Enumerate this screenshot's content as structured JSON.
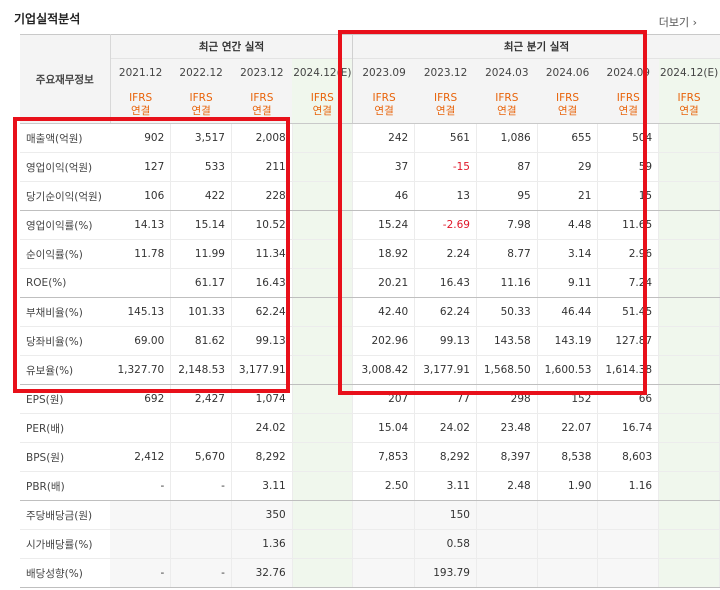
{
  "header": {
    "title": "기업실적분석",
    "more": "더보기"
  },
  "columns": {
    "row_header": "주요재무정보",
    "annual_group": "최근 연간 실적",
    "quarter_group": "최근 분기 실적",
    "annual": [
      "2021.12",
      "2022.12",
      "2023.12",
      "2024.12(E)"
    ],
    "quarter": [
      "2023.09",
      "2023.12",
      "2024.03",
      "2024.06",
      "2024.09",
      "2024.12(E)"
    ],
    "ifrs_top": "IFRS",
    "ifrs_bottom": "연결"
  },
  "rows": [
    {
      "label": "매출액(억원)",
      "annual": [
        "902",
        "3,517",
        "2,008",
        ""
      ],
      "quarter": [
        "242",
        "561",
        "1,086",
        "655",
        "504",
        ""
      ]
    },
    {
      "label": "영업이익(억원)",
      "annual": [
        "127",
        "533",
        "211",
        ""
      ],
      "quarter": [
        "37",
        "-15",
        "87",
        "29",
        "59",
        ""
      ]
    },
    {
      "label": "당기순이익(억원)",
      "annual": [
        "106",
        "422",
        "228",
        ""
      ],
      "quarter": [
        "46",
        "13",
        "95",
        "21",
        "15",
        ""
      ]
    },
    {
      "label": "영업이익률(%)",
      "annual": [
        "14.13",
        "15.14",
        "10.52",
        ""
      ],
      "quarter": [
        "15.24",
        "-2.69",
        "7.98",
        "4.48",
        "11.65",
        ""
      ]
    },
    {
      "label": "순이익률(%)",
      "annual": [
        "11.78",
        "11.99",
        "11.34",
        ""
      ],
      "quarter": [
        "18.92",
        "2.24",
        "8.77",
        "3.14",
        "2.96",
        ""
      ]
    },
    {
      "label": "ROE(%)",
      "annual": [
        "",
        "61.17",
        "16.43",
        ""
      ],
      "quarter": [
        "20.21",
        "16.43",
        "11.16",
        "9.11",
        "7.24",
        ""
      ]
    },
    {
      "label": "부채비율(%)",
      "annual": [
        "145.13",
        "101.33",
        "62.24",
        ""
      ],
      "quarter": [
        "42.40",
        "62.24",
        "50.33",
        "46.44",
        "51.45",
        ""
      ]
    },
    {
      "label": "당좌비율(%)",
      "annual": [
        "69.00",
        "81.62",
        "99.13",
        ""
      ],
      "quarter": [
        "202.96",
        "99.13",
        "143.58",
        "143.19",
        "127.87",
        ""
      ]
    },
    {
      "label": "유보율(%)",
      "annual": [
        "1,327.70",
        "2,148.53",
        "3,177.91",
        ""
      ],
      "quarter": [
        "3,008.42",
        "3,177.91",
        "1,568.50",
        "1,600.53",
        "1,614.38",
        ""
      ]
    },
    {
      "label": "EPS(원)",
      "annual": [
        "692",
        "2,427",
        "1,074",
        ""
      ],
      "quarter": [
        "207",
        "77",
        "298",
        "152",
        "66",
        ""
      ]
    },
    {
      "label": "PER(배)",
      "annual": [
        "",
        "",
        "24.02",
        ""
      ],
      "quarter": [
        "15.04",
        "24.02",
        "23.48",
        "22.07",
        "16.74",
        ""
      ]
    },
    {
      "label": "BPS(원)",
      "annual": [
        "2,412",
        "5,670",
        "8,292",
        ""
      ],
      "quarter": [
        "7,853",
        "8,292",
        "8,397",
        "8,538",
        "8,603",
        ""
      ]
    },
    {
      "label": "PBR(배)",
      "annual": [
        "-",
        "-",
        "3.11",
        ""
      ],
      "quarter": [
        "2.50",
        "3.11",
        "2.48",
        "1.90",
        "1.16",
        ""
      ]
    },
    {
      "label": "주당배당금(원)",
      "annual": [
        "",
        "",
        "350",
        ""
      ],
      "quarter": [
        "",
        "150",
        "",
        "",
        "",
        ""
      ]
    },
    {
      "label": "시가배당률(%)",
      "annual": [
        "",
        "",
        "1.36",
        ""
      ],
      "quarter": [
        "",
        "0.58",
        "",
        "",
        "",
        ""
      ]
    },
    {
      "label": "배당성향(%)",
      "annual": [
        "-",
        "-",
        "32.76",
        ""
      ],
      "quarter": [
        "",
        "193.79",
        "",
        "",
        "",
        ""
      ]
    }
  ],
  "colors": {
    "highlight_box": "#e8101a",
    "ifrs_text": "#e8630a",
    "negative": "#e0182a",
    "estimate_bg": "#f0f7ed"
  }
}
